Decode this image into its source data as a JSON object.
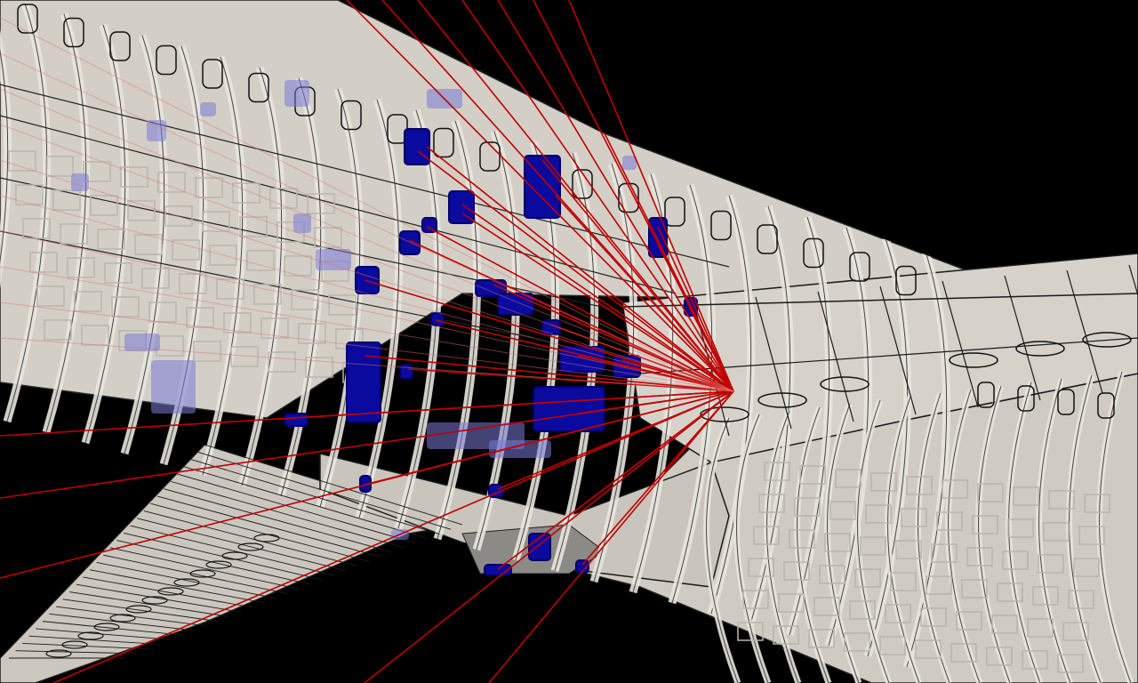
{
  "scene": {
    "subject": "aircraft-fuselage-wing-cutaway",
    "colors": {
      "background": "#000000",
      "fuselage_skin": "#cfcbc3",
      "fuselage_frame": "#e7e4dd",
      "outline": "#1a1a1a",
      "interior_grid": "#b9b5ad",
      "ray": "#c00000",
      "ray_faint": "#e07070",
      "hit_patch": "#0a0a9e",
      "hit_patch_dark": "#000066",
      "hit_patch_faint": "#7a7ad6"
    }
  }
}
